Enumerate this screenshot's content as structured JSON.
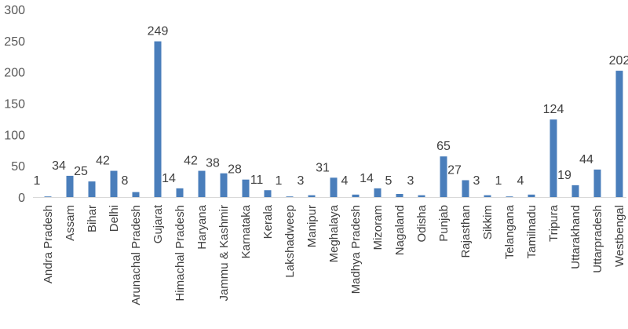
{
  "chart_data": {
    "type": "bar",
    "title": "",
    "xlabel": "",
    "ylabel": "",
    "ylim": [
      0,
      300
    ],
    "yticks": [
      0,
      50,
      100,
      150,
      200,
      250,
      300
    ],
    "grid": false,
    "legend": "none",
    "bar_color": "#4a7ebb",
    "categories": [
      "Andra Pradesh",
      "Assam",
      "Bihar",
      "Delhi",
      "Arunachal Pradesh",
      "Gujarat",
      "Himachal Pradesh",
      "Haryana",
      "Jammu & Kashmir",
      "Karnataka",
      "Kerala",
      "Lakshadweep",
      "Manipur",
      "Meghalaya",
      "Madhya Pradesh",
      "Mizoram",
      "Nagaland",
      "Odisha",
      "Punjab",
      "Rajasthan",
      "Sikkim",
      "Telangana",
      "Tamilnadu",
      "Tripura",
      "Uttarakhand",
      "Uttarpradesh",
      "Westbengal"
    ],
    "values": [
      1,
      34,
      25,
      42,
      8,
      249,
      14,
      42,
      38,
      28,
      11,
      1,
      3,
      31,
      4,
      14,
      5,
      3,
      65,
      27,
      3,
      1,
      4,
      124,
      19,
      44,
      202
    ],
    "data_labels": true
  }
}
